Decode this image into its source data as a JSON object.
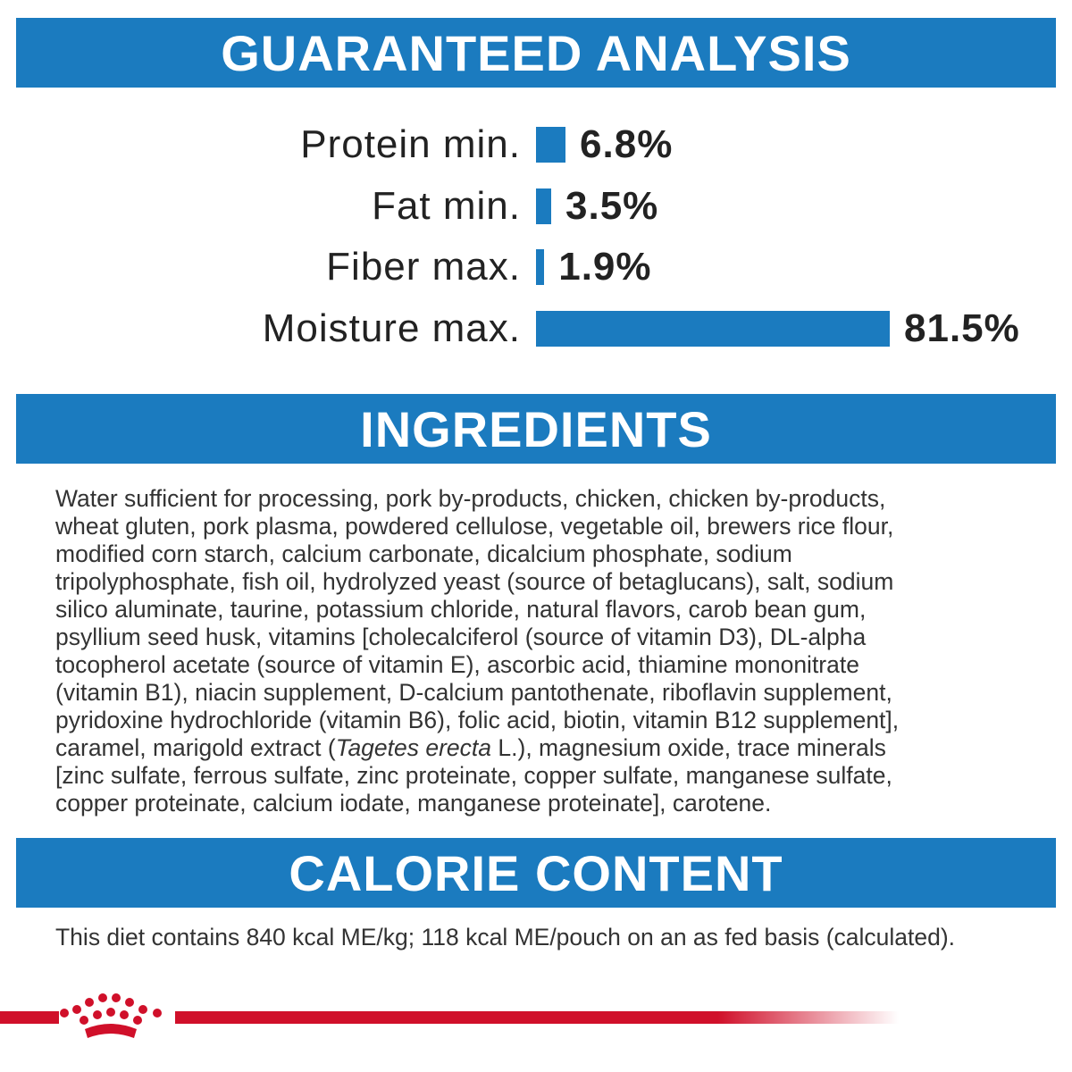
{
  "analysis": {
    "title": "GUARANTEED ANALYSIS",
    "categories": [
      "Protein min.",
      "Fat min.",
      "Fiber max.",
      "Moisture max."
    ],
    "values": [
      6.8,
      3.5,
      1.9,
      81.5
    ],
    "value_labels": [
      "6.8%",
      "3.5%",
      "1.9%",
      "81.5%"
    ],
    "color": "#1b7bbf"
  },
  "ingredients": {
    "title": "INGREDIENTS",
    "lines": [
      "Water sufficient for processing, pork by-products, chicken, chicken by-products,",
      "wheat gluten, pork plasma, powdered cellulose, vegetable oil, brewers rice flour,",
      "modified corn starch, calcium carbonate, dicalcium phosphate, sodium",
      "tripolyphosphate, fish oil, hydrolyzed yeast (source of betaglucans), salt, sodium",
      "silico aluminate, taurine, potassium chloride, natural flavors, carob bean gum,",
      "psyllium seed husk, vitamins [cholecalciferol (source of vitamin D3), DL-alpha",
      "tocopherol acetate (source of vitamin E), ascorbic acid, thiamine mononitrate",
      "(vitamin B1), niacin supplement, D-calcium pantothenate, riboflavin supplement,",
      "pyridoxine hydrochloride (vitamin B6), folic acid, biotin, vitamin B12 supplement],",
      {
        "before": "caramel, marigold extract (",
        "italic": "Tagetes erecta",
        "after": " L.), magnesium oxide, trace minerals"
      },
      "[zinc sulfate, ferrous sulfate, zinc proteinate, copper sulfate, manganese sulfate,",
      "copper proteinate, calcium iodate, manganese proteinate], carotene."
    ]
  },
  "calorie": {
    "title": "CALORIE CONTENT",
    "text": "This diet contains 840 kcal ME/kg; 118 kcal ME/pouch on an as fed basis (calculated)."
  }
}
